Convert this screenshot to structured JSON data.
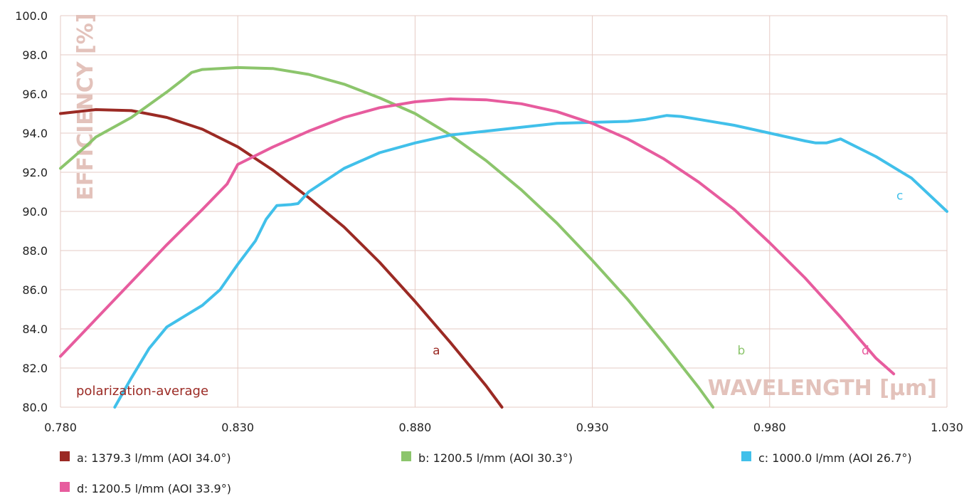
{
  "chart_data": {
    "type": "line",
    "title": "",
    "xlabel": "WAVELENGTH [µm]",
    "ylabel": "EFFICIENCY [%]",
    "xlim": [
      0.78,
      1.03
    ],
    "ylim": [
      80,
      100
    ],
    "grid": true,
    "legend_position": "bottom",
    "x_ticks": [
      "0.780",
      "0.830",
      "0.880",
      "0.930",
      "0.980",
      "1.030"
    ],
    "y_ticks": [
      "80.0",
      "82.0",
      "84.0",
      "86.0",
      "88.0",
      "90.0",
      "92.0",
      "94.0",
      "96.0",
      "98.0",
      "100.0"
    ],
    "annotation": "polarization-average",
    "series": [
      {
        "name": "a: 1379.3 l/mm (AOI 34.0°)",
        "label": "a",
        "color": "#9b2a24",
        "label_pos": [
          0.886,
          82.7
        ],
        "points": [
          [
            0.78,
            95.0
          ],
          [
            0.79,
            95.2
          ],
          [
            0.8,
            95.15
          ],
          [
            0.81,
            94.8
          ],
          [
            0.82,
            94.2
          ],
          [
            0.83,
            93.3
          ],
          [
            0.84,
            92.1
          ],
          [
            0.85,
            90.7
          ],
          [
            0.86,
            89.2
          ],
          [
            0.87,
            87.4
          ],
          [
            0.88,
            85.4
          ],
          [
            0.89,
            83.3
          ],
          [
            0.9,
            81.1
          ],
          [
            0.9045,
            80.0
          ]
        ]
      },
      {
        "name": "b: 1200.5 l/mm (AOI 30.3°)",
        "label": "b",
        "color": "#8cc56c",
        "label_pos": [
          0.972,
          82.7
        ],
        "points": [
          [
            0.78,
            92.2
          ],
          [
            0.787,
            93.3
          ],
          [
            0.79,
            93.8
          ],
          [
            0.8,
            94.8
          ],
          [
            0.81,
            96.1
          ],
          [
            0.815,
            96.8
          ],
          [
            0.817,
            97.1
          ],
          [
            0.82,
            97.25
          ],
          [
            0.83,
            97.35
          ],
          [
            0.84,
            97.3
          ],
          [
            0.85,
            97.0
          ],
          [
            0.86,
            96.5
          ],
          [
            0.87,
            95.8
          ],
          [
            0.88,
            95.0
          ],
          [
            0.89,
            93.9
          ],
          [
            0.9,
            92.6
          ],
          [
            0.91,
            91.1
          ],
          [
            0.92,
            89.4
          ],
          [
            0.93,
            87.5
          ],
          [
            0.94,
            85.5
          ],
          [
            0.95,
            83.3
          ],
          [
            0.96,
            81.0
          ],
          [
            0.964,
            80.0
          ]
        ]
      },
      {
        "name": "c: 1000.0 l/mm (AOI 26.7°)",
        "label": "c",
        "color": "#41c0ea",
        "label_pos": [
          1.0167,
          90.6
        ],
        "points": [
          [
            0.7953,
            80.0
          ],
          [
            0.8,
            81.5
          ],
          [
            0.805,
            83.0
          ],
          [
            0.81,
            84.1
          ],
          [
            0.82,
            85.2
          ],
          [
            0.825,
            86.0
          ],
          [
            0.83,
            87.3
          ],
          [
            0.835,
            88.5
          ],
          [
            0.838,
            89.6
          ],
          [
            0.841,
            90.3
          ],
          [
            0.845,
            90.35
          ],
          [
            0.847,
            90.4
          ],
          [
            0.85,
            91.0
          ],
          [
            0.855,
            91.6
          ],
          [
            0.86,
            92.2
          ],
          [
            0.87,
            93.0
          ],
          [
            0.88,
            93.5
          ],
          [
            0.89,
            93.9
          ],
          [
            0.9,
            94.1
          ],
          [
            0.91,
            94.3
          ],
          [
            0.92,
            94.5
          ],
          [
            0.93,
            94.55
          ],
          [
            0.94,
            94.6
          ],
          [
            0.945,
            94.7
          ],
          [
            0.951,
            94.9
          ],
          [
            0.955,
            94.85
          ],
          [
            0.96,
            94.7
          ],
          [
            0.97,
            94.4
          ],
          [
            0.98,
            94.0
          ],
          [
            0.99,
            93.6
          ],
          [
            0.993,
            93.5
          ],
          [
            0.996,
            93.5
          ],
          [
            1.0,
            93.7
          ],
          [
            1.01,
            92.8
          ],
          [
            1.02,
            91.7
          ],
          [
            1.03,
            90.0
          ]
        ]
      },
      {
        "name": "d: 1200.5 l/mm (AOI 33.9°)",
        "label": "d",
        "color": "#e75c9e",
        "label_pos": [
          1.007,
          82.7
        ],
        "points": [
          [
            0.78,
            82.6
          ],
          [
            0.79,
            84.5
          ],
          [
            0.8,
            86.4
          ],
          [
            0.81,
            88.3
          ],
          [
            0.82,
            90.1
          ],
          [
            0.827,
            91.4
          ],
          [
            0.83,
            92.4
          ],
          [
            0.84,
            93.3
          ],
          [
            0.85,
            94.1
          ],
          [
            0.86,
            94.8
          ],
          [
            0.87,
            95.3
          ],
          [
            0.88,
            95.6
          ],
          [
            0.89,
            95.75
          ],
          [
            0.9,
            95.7
          ],
          [
            0.91,
            95.5
          ],
          [
            0.92,
            95.1
          ],
          [
            0.93,
            94.5
          ],
          [
            0.94,
            93.7
          ],
          [
            0.95,
            92.7
          ],
          [
            0.96,
            91.5
          ],
          [
            0.97,
            90.1
          ],
          [
            0.98,
            88.4
          ],
          [
            0.99,
            86.6
          ],
          [
            1.0,
            84.6
          ],
          [
            1.01,
            82.5
          ],
          [
            1.015,
            81.7
          ]
        ]
      }
    ]
  },
  "colors": {
    "grid": "#e6cbc4",
    "axis_title": "#e3c2bb",
    "note": "#9b2a24"
  }
}
